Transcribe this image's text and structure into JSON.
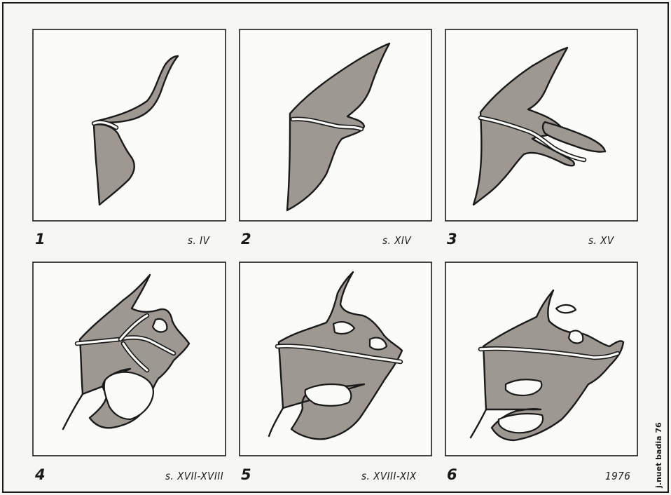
{
  "panels": [
    {
      "number": "1",
      "period": "s. IV"
    },
    {
      "number": "2",
      "period": "s. XIV"
    },
    {
      "number": "3",
      "period": "s. XV"
    },
    {
      "number": "4",
      "period": "s. XVII-XVIII"
    },
    {
      "number": "5",
      "period": "s. XVIII-XIX"
    },
    {
      "number": "6",
      "period": "1976"
    }
  ],
  "credit": "j.nuet badia 76",
  "colors": {
    "land": "#9d9892",
    "water": "#fbfbf8",
    "ink": "#1a1a1a"
  }
}
